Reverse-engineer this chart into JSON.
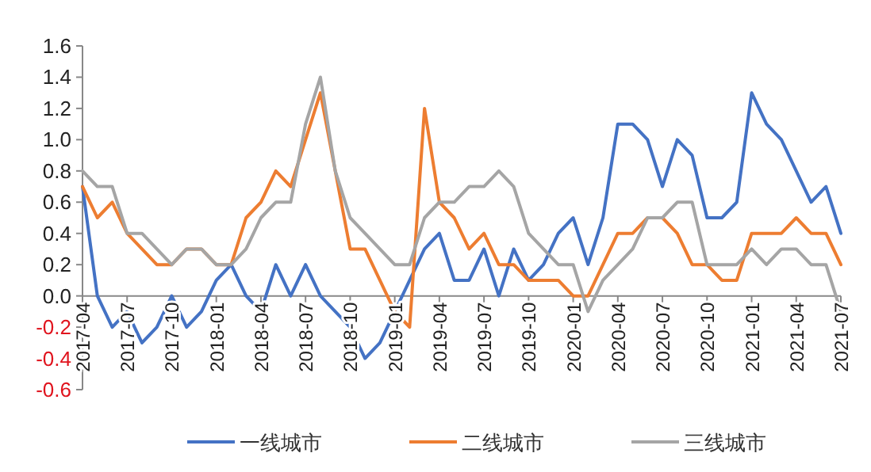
{
  "chart_data": {
    "type": "line",
    "categories": [
      "2017-04",
      null,
      null,
      "2017-07",
      null,
      null,
      "2017-10",
      null,
      null,
      "2018-01",
      null,
      null,
      "2018-04",
      null,
      null,
      "2018-07",
      null,
      null,
      "2018-10",
      null,
      null,
      "2019-01",
      null,
      null,
      "2019-04",
      null,
      null,
      "2019-07",
      null,
      null,
      "2019-10",
      null,
      null,
      "2020-01",
      null,
      null,
      "2020-04",
      null,
      null,
      "2020-07",
      null,
      null,
      "2020-10",
      null,
      null,
      "2021-01",
      null,
      null,
      "2021-04",
      null,
      null,
      "2021-07"
    ],
    "series": [
      {
        "name": "一线城市",
        "color": "#4472c4",
        "values": [
          0.7,
          0,
          -0.2,
          -0.1,
          -0.3,
          -0.2,
          0,
          -0.2,
          -0.1,
          0.1,
          0.2,
          0,
          -0.1,
          0.2,
          0,
          0.2,
          0,
          -0.1,
          -0.2,
          -0.4,
          -0.3,
          -0.1,
          0.1,
          0.3,
          0.4,
          0.1,
          0.1,
          0.3,
          0,
          0.3,
          0.1,
          0.2,
          0.4,
          0.5,
          0.2,
          0.5,
          1.1,
          1.1,
          1.0,
          0.7,
          1.0,
          0.9,
          0.5,
          0.5,
          0.6,
          1.3,
          1.1,
          1.0,
          0.8,
          0.6,
          0.7,
          0.4
        ]
      },
      {
        "name": "二线城市",
        "color": "#ed7d31",
        "values": [
          0.7,
          0.5,
          0.6,
          0.4,
          0.3,
          0.2,
          0.2,
          0.3,
          0.3,
          0.2,
          0.2,
          0.5,
          0.6,
          0.8,
          0.7,
          1.0,
          1.3,
          0.8,
          0.3,
          0.3,
          0.1,
          -0.1,
          -0.2,
          1.2,
          0.6,
          0.5,
          0.3,
          0.4,
          0.2,
          0.2,
          0.1,
          0.1,
          0.1,
          0.0,
          0.0,
          0.2,
          0.4,
          0.4,
          0.5,
          0.5,
          0.4,
          0.2,
          0.2,
          0.1,
          0.1,
          0.4,
          0.4,
          0.4,
          0.5,
          0.4,
          0.4,
          0.2
        ]
      },
      {
        "name": "三线城市",
        "color": "#a5a5a5",
        "values": [
          0.8,
          0.7,
          0.7,
          0.4,
          0.4,
          0.3,
          0.2,
          0.3,
          0.3,
          0.2,
          0.2,
          0.3,
          0.5,
          0.6,
          0.6,
          1.1,
          1.4,
          0.8,
          0.5,
          0.4,
          0.3,
          0.2,
          0.2,
          0.5,
          0.6,
          0.6,
          0.7,
          0.7,
          0.8,
          0.7,
          0.4,
          0.3,
          0.2,
          0.2,
          -0.1,
          0.1,
          0.2,
          0.3,
          0.5,
          0.5,
          0.6,
          0.6,
          0.2,
          0.2,
          0.2,
          0.3,
          0.2,
          0.3,
          0.3,
          0.2,
          0.2,
          -0.1
        ]
      }
    ],
    "ylim": [
      -0.6,
      1.6
    ],
    "yticks": [
      {
        "value": -0.6,
        "label": "-0.6"
      },
      {
        "value": -0.4,
        "label": "-0.4"
      },
      {
        "value": -0.2,
        "label": "-0.2"
      },
      {
        "value": 0,
        "label": "0.0"
      },
      {
        "value": 0.2,
        "label": "0.2"
      },
      {
        "value": 0.4,
        "label": "0.4"
      },
      {
        "value": 0.6,
        "label": "0.6"
      },
      {
        "value": 0.8,
        "label": "0.8"
      },
      {
        "value": 1.0,
        "label": "1.0"
      },
      {
        "value": 1.2,
        "label": "1.2"
      },
      {
        "value": 1.4,
        "label": "1.4"
      },
      {
        "value": 1.6,
        "label": "1.6"
      }
    ],
    "legend": "bottom",
    "line_style": "solid"
  }
}
